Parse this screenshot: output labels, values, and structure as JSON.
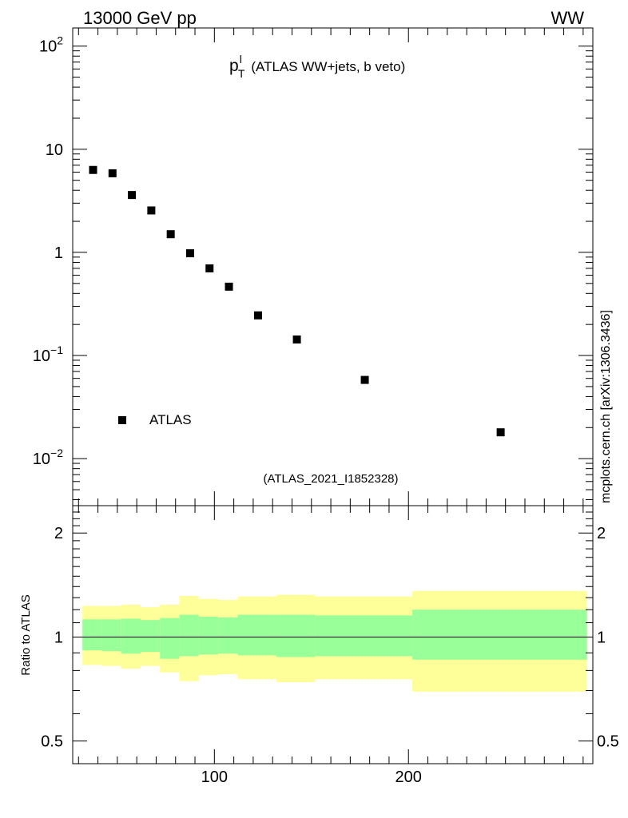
{
  "header": {
    "left": "13000 GeV pp",
    "right": "WW"
  },
  "side_label": "mcplots.cern.ch [arXiv:1306.3436]",
  "analysis_tag": "(ATLAS_2021_I1852328)",
  "colors": {
    "inner_band": "#99ff99",
    "outer_band": "#ffff99",
    "marker": "#000000",
    "analysis_tag": "#999999"
  },
  "chart_data": [
    {
      "type": "scatter",
      "title": {
        "p": "p",
        "sup": "l",
        "sub": "T",
        "rest": "(ATLAS WW+jets, b veto)"
      },
      "x_scale": "linear",
      "xlim": [
        27,
        295
      ],
      "y_scale": "log",
      "ylim": [
        0.0035,
        150
      ],
      "y_ticks": [
        {
          "value": 100,
          "base": "10",
          "exp": "2"
        },
        {
          "value": 10,
          "base": "10",
          "exp": ""
        },
        {
          "value": 1,
          "base": "1",
          "exp": ""
        },
        {
          "value": 0.1,
          "base": "10",
          "exp": "−1"
        },
        {
          "value": 0.01,
          "base": "10",
          "exp": "−2"
        }
      ],
      "legend": {
        "position": "bottom-left",
        "entries": [
          "ATLAS"
        ]
      },
      "series": [
        {
          "name": "ATLAS",
          "x": [
            37.5,
            47.5,
            57.5,
            67.5,
            77.5,
            87.5,
            97.5,
            107.5,
            122.5,
            142.5,
            177.5,
            247.5
          ],
          "y": [
            6.3,
            5.85,
            3.6,
            2.55,
            1.5,
            0.98,
            0.7,
            0.465,
            0.245,
            0.143,
            0.058,
            0.018
          ]
        }
      ]
    },
    {
      "type": "area",
      "ylabel": "Ratio to ATLAS",
      "x_scale": "linear",
      "xlim": [
        27,
        295
      ],
      "y_scale": "log",
      "ylim": [
        0.43,
        2.4
      ],
      "y_ticks": [
        {
          "value": 2,
          "label": "2"
        },
        {
          "value": 1,
          "label": "1"
        },
        {
          "value": 0.5,
          "label": "0.5"
        }
      ],
      "x_ticks": [
        {
          "value": 100,
          "label": "100"
        },
        {
          "value": 200,
          "label": "200"
        }
      ],
      "reference_line": 1,
      "bins": [
        {
          "lo": 32,
          "hi": 42,
          "inner": [
            0.915,
            1.125
          ],
          "outer": [
            0.83,
            1.23
          ]
        },
        {
          "lo": 42,
          "hi": 52,
          "inner": [
            0.91,
            1.125
          ],
          "outer": [
            0.825,
            1.23
          ]
        },
        {
          "lo": 52,
          "hi": 62,
          "inner": [
            0.895,
            1.13
          ],
          "outer": [
            0.81,
            1.24
          ]
        },
        {
          "lo": 62,
          "hi": 72,
          "inner": [
            0.905,
            1.12
          ],
          "outer": [
            0.825,
            1.22
          ]
        },
        {
          "lo": 72,
          "hi": 82,
          "inner": [
            0.865,
            1.135
          ],
          "outer": [
            0.79,
            1.24
          ]
        },
        {
          "lo": 82,
          "hi": 92,
          "inner": [
            0.88,
            1.16
          ],
          "outer": [
            0.745,
            1.315
          ]
        },
        {
          "lo": 92,
          "hi": 102,
          "inner": [
            0.89,
            1.145
          ],
          "outer": [
            0.775,
            1.29
          ]
        },
        {
          "lo": 102,
          "hi": 112,
          "inner": [
            0.895,
            1.14
          ],
          "outer": [
            0.78,
            1.28
          ]
        },
        {
          "lo": 112,
          "hi": 132,
          "inner": [
            0.885,
            1.16
          ],
          "outer": [
            0.755,
            1.31
          ]
        },
        {
          "lo": 132,
          "hi": 152,
          "inner": [
            0.875,
            1.16
          ],
          "outer": [
            0.74,
            1.325
          ]
        },
        {
          "lo": 152,
          "hi": 202,
          "inner": [
            0.88,
            1.155
          ],
          "outer": [
            0.755,
            1.31
          ]
        },
        {
          "lo": 202,
          "hi": 292,
          "inner": [
            0.86,
            1.2
          ],
          "outer": [
            0.695,
            1.36
          ]
        }
      ]
    }
  ]
}
